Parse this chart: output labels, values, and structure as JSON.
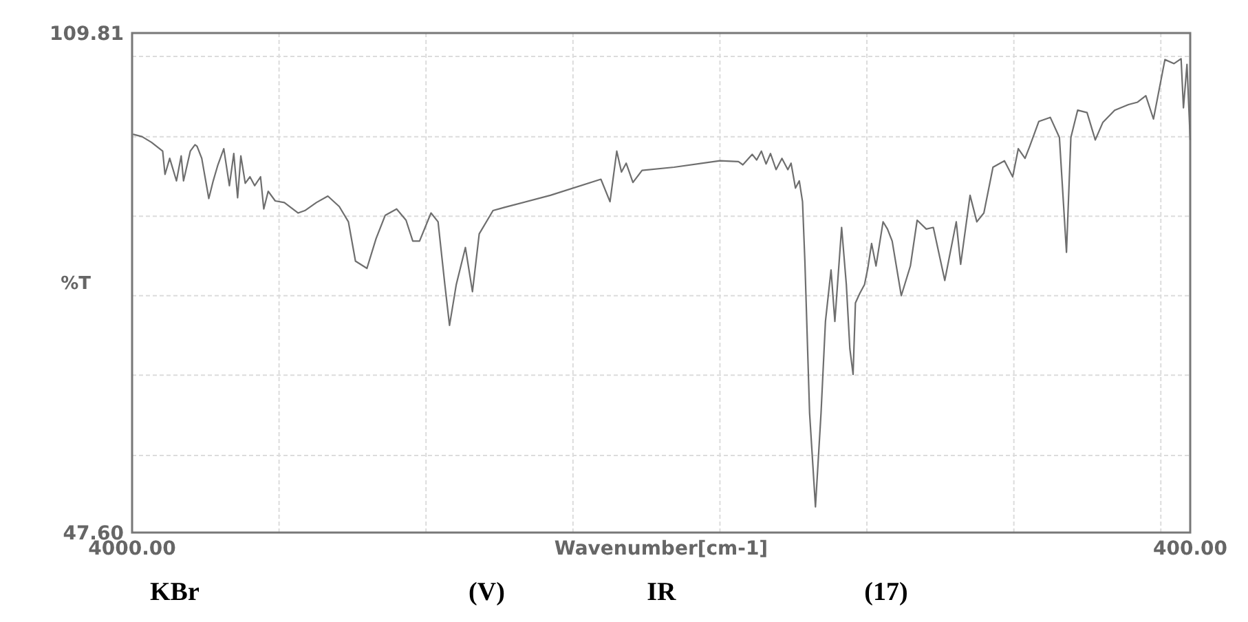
{
  "chart_data": {
    "type": "line",
    "xlabel": "Wavenumber[cm-1]",
    "ylabel": "%T",
    "xlim": [
      4000,
      400
    ],
    "ylim": [
      47.6,
      109.81
    ],
    "xticks": [
      {
        "value": 4000,
        "label": "4000.00"
      },
      {
        "value": 3500,
        "label": null
      },
      {
        "value": 3000,
        "label": null
      },
      {
        "value": 2500,
        "label": null
      },
      {
        "value": 2000,
        "label": null
      },
      {
        "value": 1500,
        "label": null
      },
      {
        "value": 1000,
        "label": null
      },
      {
        "value": 500,
        "label": null
      },
      {
        "value": 400,
        "label": "400.00"
      }
    ],
    "yticks": [
      {
        "value": 47.6,
        "label": "47.60"
      },
      {
        "value": 57.2,
        "label": null
      },
      {
        "value": 67.2,
        "label": null
      },
      {
        "value": 77.1,
        "label": null
      },
      {
        "value": 87,
        "label": null
      },
      {
        "value": 96.9,
        "label": null
      },
      {
        "value": 106.9,
        "label": null
      },
      {
        "value": 109.81,
        "label": "109.81"
      }
    ],
    "grid": true,
    "marker": "none",
    "line_style": "solid",
    "annotations": [
      "KBr",
      "(V)",
      "IR",
      "(17)"
    ],
    "series": [
      {
        "color": "#6e6e6e",
        "x": [
          3997,
          3966,
          3934,
          3896,
          3888,
          3872,
          3849,
          3833,
          3825,
          3802,
          3786,
          3779,
          3763,
          3739,
          3724,
          3708,
          3688,
          3669,
          3654,
          3641,
          3630,
          3615,
          3599,
          3583,
          3563,
          3552,
          3537,
          3513,
          3482,
          3435,
          3412,
          3373,
          3334,
          3295,
          3264,
          3240,
          3201,
          3170,
          3139,
          3100,
          3068,
          3045,
          3022,
          2983,
          2959,
          2936,
          2920,
          2897,
          2866,
          2842,
          2819,
          2772,
          2733,
          2577,
          2405,
          2374,
          2351,
          2335,
          2319,
          2296,
          2265,
          2156,
          2000,
          1937,
          1922,
          1890,
          1875,
          1859,
          1843,
          1828,
          1809,
          1789,
          1769,
          1758,
          1743,
          1730,
          1719,
          1711,
          1695,
          1675,
          1656,
          1641,
          1622,
          1609,
          1586,
          1570,
          1558,
          1547,
          1539,
          1524,
          1508,
          1497,
          1484,
          1469,
          1445,
          1430,
          1414,
          1383,
          1352,
          1329,
          1298,
          1274,
          1235,
          1196,
          1181,
          1149,
          1126,
          1102,
          1071,
          1032,
          1004,
          985,
          962,
          946,
          915,
          876,
          845,
          821,
          806,
          783,
          751,
          723,
          697,
          657,
          610,
          579,
          551,
          525,
          486,
          455,
          431,
          423,
          411,
          400
        ],
        "values": [
          97.2,
          96.9,
          96.2,
          95.1,
          92.2,
          94.2,
          91.4,
          94.5,
          91.4,
          95.1,
          95.9,
          95.7,
          94.2,
          89.2,
          91.4,
          93.4,
          95.4,
          90.8,
          94.8,
          89.3,
          94.5,
          91.1,
          91.9,
          90.8,
          91.9,
          87.9,
          90.1,
          88.9,
          88.7,
          87.4,
          87.7,
          88.7,
          89.5,
          88.2,
          86.3,
          81.4,
          80.5,
          84.2,
          87.1,
          87.9,
          86.5,
          83.9,
          83.9,
          87.4,
          86.3,
          78.5,
          73.4,
          78.5,
          83.1,
          77.6,
          84.8,
          87.7,
          88.1,
          89.6,
          91.6,
          88.8,
          95.1,
          92.5,
          93.6,
          91.2,
          92.7,
          93.1,
          93.9,
          93.8,
          93.4,
          94.7,
          94.0,
          95.1,
          93.5,
          94.8,
          92.8,
          94.2,
          92.8,
          93.6,
          90.5,
          91.4,
          88.8,
          81.4,
          62.5,
          50.8,
          62.5,
          73.9,
          80.3,
          73.9,
          85.6,
          78.5,
          70.5,
          67.3,
          76.2,
          77.4,
          78.5,
          80.5,
          83.6,
          80.8,
          86.3,
          85.4,
          83.9,
          77.1,
          80.8,
          86.5,
          85.4,
          85.6,
          79.0,
          86.3,
          81.0,
          89.6,
          86.3,
          87.4,
          93.1,
          93.9,
          91.9,
          95.4,
          94.2,
          95.7,
          98.8,
          99.3,
          96.8,
          82.5,
          96.8,
          100.2,
          99.9,
          96.5,
          98.7,
          100.2,
          100.9,
          101.2,
          102.0,
          99.1,
          106.5,
          106.0,
          106.6,
          100.5,
          105.9,
          96.5
        ]
      }
    ]
  }
}
